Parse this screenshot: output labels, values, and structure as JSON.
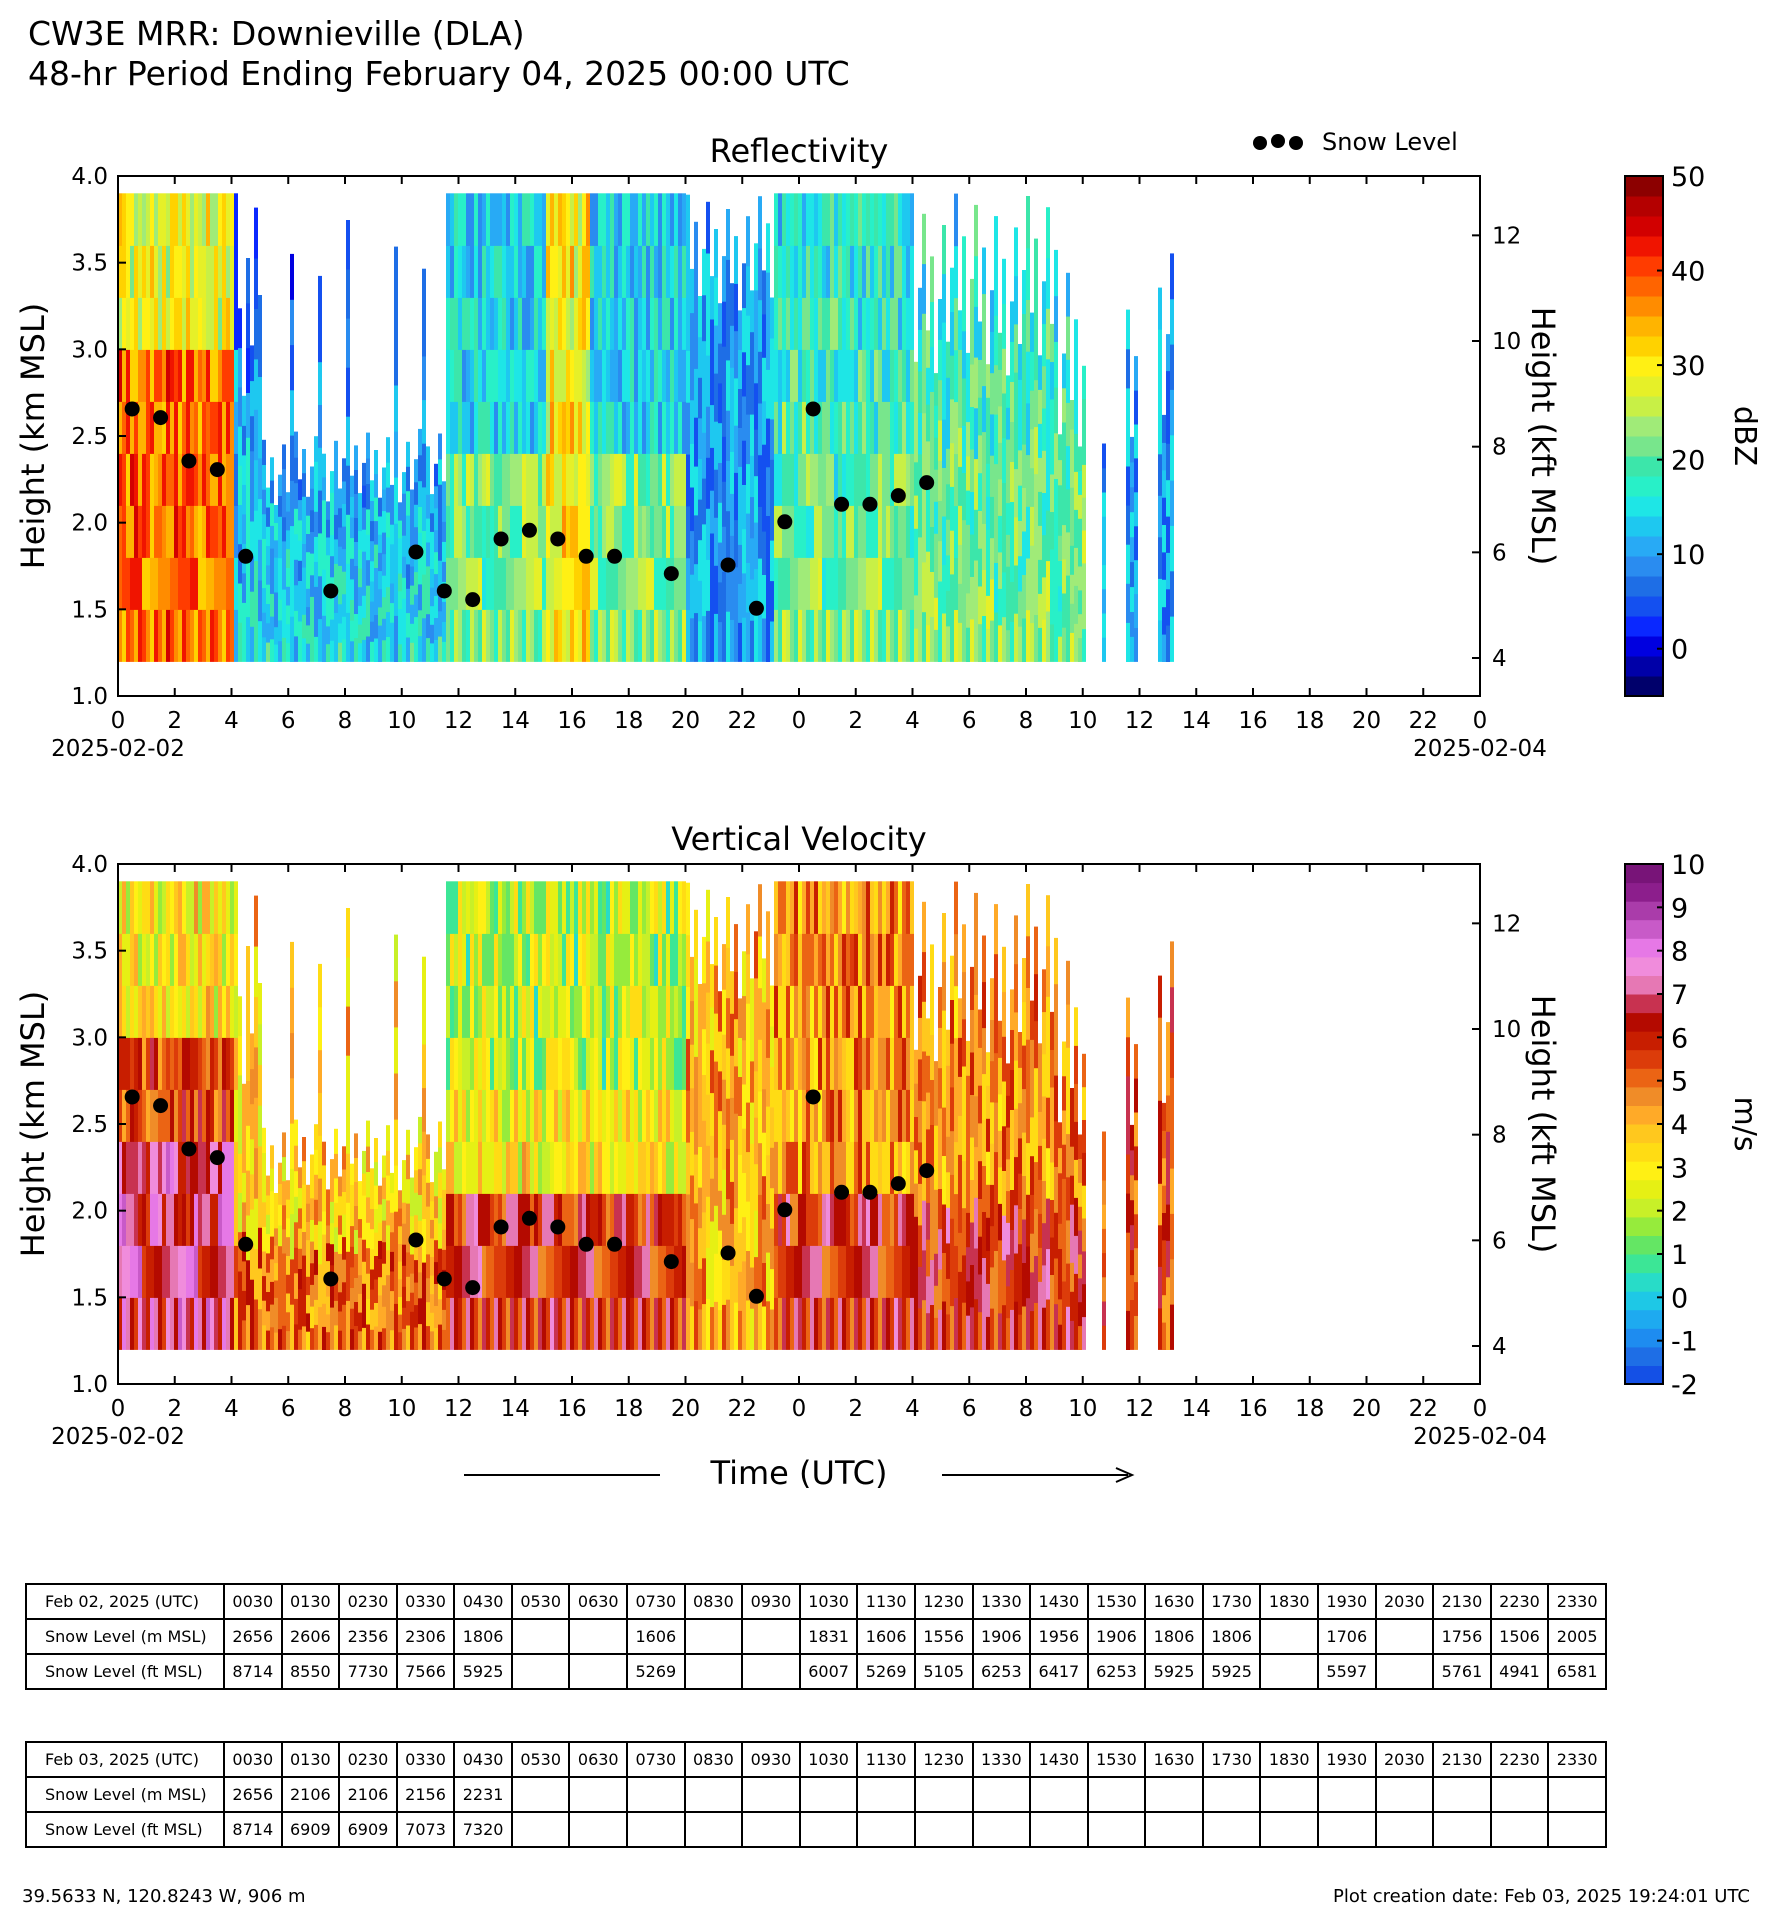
{
  "header": {
    "title": "CW3E MRR: Downieville (DLA)",
    "subtitle": "48-hr Period Ending February 04, 2025 00:00 UTC"
  },
  "legend_label": "Snow Level",
  "time_label": "Time (UTC)",
  "chart_data": [
    {
      "type": "heatmap",
      "title": "Reflectivity",
      "ylabel": "Height (km MSL)",
      "ylabel_right": "Height (kft MSL)",
      "ylim": [
        1.0,
        4.0
      ],
      "yticks": [
        "1.0",
        "1.5",
        "2.0",
        "2.5",
        "3.0",
        "3.5",
        "4.0"
      ],
      "yticks_right": [
        "4",
        "6",
        "8",
        "10",
        "12"
      ],
      "xtick_labels": [
        "0",
        "2",
        "4",
        "6",
        "8",
        "10",
        "12",
        "14",
        "16",
        "18",
        "20",
        "22",
        "0",
        "2",
        "4",
        "6",
        "8",
        "10",
        "12",
        "14",
        "16",
        "18",
        "20",
        "22",
        "0"
      ],
      "date_start": "2025-02-02",
      "date_end": "2025-02-04",
      "colorbar": {
        "label": "dBZ",
        "ticks": [
          "0",
          "10",
          "20",
          "30",
          "40",
          "50"
        ],
        "range": [
          -5,
          50
        ],
        "colors": [
          "#00006b",
          "#0000a8",
          "#0000e0",
          "#0a28ff",
          "#1450f0",
          "#1e6ee6",
          "#2a8cf0",
          "#28aaf5",
          "#1ec8f0",
          "#1ee6e6",
          "#28f0c8",
          "#3ce6aa",
          "#78e68c",
          "#a0eb78",
          "#c8f046",
          "#e6f028",
          "#fff014",
          "#ffd200",
          "#ffb400",
          "#ff8c00",
          "#ff6400",
          "#ff3c00",
          "#f01400",
          "#d20000",
          "#b40000",
          "#8c0000"
        ]
      },
      "snow_level_points": [
        {
          "x": 0.5,
          "y": 2.656
        },
        {
          "x": 1.5,
          "y": 2.606
        },
        {
          "x": 2.5,
          "y": 2.356
        },
        {
          "x": 3.5,
          "y": 2.306
        },
        {
          "x": 4.5,
          "y": 1.806
        },
        {
          "x": 7.5,
          "y": 1.606
        },
        {
          "x": 10.5,
          "y": 1.831
        },
        {
          "x": 11.5,
          "y": 1.606
        },
        {
          "x": 12.5,
          "y": 1.556
        },
        {
          "x": 13.5,
          "y": 1.906
        },
        {
          "x": 14.5,
          "y": 1.956
        },
        {
          "x": 15.5,
          "y": 1.906
        },
        {
          "x": 16.5,
          "y": 1.806
        },
        {
          "x": 17.5,
          "y": 1.806
        },
        {
          "x": 19.5,
          "y": 1.706
        },
        {
          "x": 21.5,
          "y": 1.756
        },
        {
          "x": 22.5,
          "y": 1.506
        },
        {
          "x": 23.5,
          "y": 2.005
        },
        {
          "x": 24.5,
          "y": 2.656
        },
        {
          "x": 25.5,
          "y": 2.106
        },
        {
          "x": 26.5,
          "y": 2.106
        },
        {
          "x": 27.5,
          "y": 2.156
        },
        {
          "x": 28.5,
          "y": 2.231
        }
      ]
    },
    {
      "type": "heatmap",
      "title": "Vertical Velocity",
      "ylabel": "Height (km MSL)",
      "ylabel_right": "Height (kft MSL)",
      "ylim": [
        1.0,
        4.0
      ],
      "yticks": [
        "1.0",
        "1.5",
        "2.0",
        "2.5",
        "3.0",
        "3.5",
        "4.0"
      ],
      "yticks_right": [
        "4",
        "6",
        "8",
        "10",
        "12"
      ],
      "xtick_labels": [
        "0",
        "2",
        "4",
        "6",
        "8",
        "10",
        "12",
        "14",
        "16",
        "18",
        "20",
        "22",
        "0",
        "2",
        "4",
        "6",
        "8",
        "10",
        "12",
        "14",
        "16",
        "18",
        "20",
        "22",
        "0"
      ],
      "date_start": "2025-02-02",
      "date_end": "2025-02-04",
      "colorbar": {
        "label": "m/s",
        "ticks": [
          "-2",
          "-1",
          "0",
          "1",
          "2",
          "3",
          "4",
          "5",
          "6",
          "7",
          "8",
          "9",
          "10"
        ],
        "range": [
          -2,
          10
        ],
        "colors": [
          "#1450e6",
          "#1e6ee6",
          "#1e8cf0",
          "#1eaaf0",
          "#1ec8e6",
          "#28dcc8",
          "#3ce696",
          "#64e664",
          "#96eb3c",
          "#c8f028",
          "#e6f014",
          "#fff014",
          "#ffdc14",
          "#ffc81e",
          "#ffaa28",
          "#f08c28",
          "#eb6414",
          "#dc3c0a",
          "#c81e00",
          "#b40a00",
          "#c83250",
          "#e678b4",
          "#f08cdc",
          "#e678e6",
          "#c85ac8",
          "#aa3caa",
          "#8c1e8c",
          "#781478"
        ]
      },
      "snow_level_points": [
        {
          "x": 0.5,
          "y": 2.656
        },
        {
          "x": 1.5,
          "y": 2.606
        },
        {
          "x": 2.5,
          "y": 2.356
        },
        {
          "x": 3.5,
          "y": 2.306
        },
        {
          "x": 4.5,
          "y": 1.806
        },
        {
          "x": 7.5,
          "y": 1.606
        },
        {
          "x": 10.5,
          "y": 1.831
        },
        {
          "x": 11.5,
          "y": 1.606
        },
        {
          "x": 12.5,
          "y": 1.556
        },
        {
          "x": 13.5,
          "y": 1.906
        },
        {
          "x": 14.5,
          "y": 1.956
        },
        {
          "x": 15.5,
          "y": 1.906
        },
        {
          "x": 16.5,
          "y": 1.806
        },
        {
          "x": 17.5,
          "y": 1.806
        },
        {
          "x": 19.5,
          "y": 1.706
        },
        {
          "x": 21.5,
          "y": 1.756
        },
        {
          "x": 22.5,
          "y": 1.506
        },
        {
          "x": 23.5,
          "y": 2.005
        },
        {
          "x": 24.5,
          "y": 2.656
        },
        {
          "x": 25.5,
          "y": 2.106
        },
        {
          "x": 26.5,
          "y": 2.106
        },
        {
          "x": 27.5,
          "y": 2.156
        },
        {
          "x": 28.5,
          "y": 2.231
        }
      ]
    }
  ],
  "tables": [
    {
      "header": "Feb 02, 2025 (UTC)",
      "times": [
        "0030",
        "0130",
        "0230",
        "0330",
        "0430",
        "0530",
        "0630",
        "0730",
        "0830",
        "0930",
        "1030",
        "1130",
        "1230",
        "1330",
        "1430",
        "1530",
        "1630",
        "1730",
        "1830",
        "1930",
        "2030",
        "2130",
        "2230",
        "2330"
      ],
      "rows": [
        {
          "label": "Snow Level (m MSL)",
          "values": [
            "2656",
            "2606",
            "2356",
            "2306",
            "1806",
            "",
            "",
            "1606",
            "",
            "",
            "1831",
            "1606",
            "1556",
            "1906",
            "1956",
            "1906",
            "1806",
            "1806",
            "",
            "1706",
            "",
            "1756",
            "1506",
            "2005"
          ]
        },
        {
          "label": "Snow Level (ft MSL)",
          "values": [
            "8714",
            "8550",
            "7730",
            "7566",
            "5925",
            "",
            "",
            "5269",
            "",
            "",
            "6007",
            "5269",
            "5105",
            "6253",
            "6417",
            "6253",
            "5925",
            "5925",
            "",
            "5597",
            "",
            "5761",
            "4941",
            "6581"
          ]
        }
      ]
    },
    {
      "header": "Feb 03, 2025 (UTC)",
      "times": [
        "0030",
        "0130",
        "0230",
        "0330",
        "0430",
        "0530",
        "0630",
        "0730",
        "0830",
        "0930",
        "1030",
        "1130",
        "1230",
        "1330",
        "1430",
        "1530",
        "1630",
        "1730",
        "1830",
        "1930",
        "2030",
        "2130",
        "2230",
        "2330"
      ],
      "rows": [
        {
          "label": "Snow Level (m MSL)",
          "values": [
            "2656",
            "2106",
            "2106",
            "2156",
            "2231",
            "",
            "",
            "",
            "",
            "",
            "",
            "",
            "",
            "",
            "",
            "",
            "",
            "",
            "",
            "",
            "",
            "",
            "",
            ""
          ]
        },
        {
          "label": "Snow Level (ft MSL)",
          "values": [
            "8714",
            "6909",
            "6909",
            "7073",
            "7320",
            "",
            "",
            "",
            "",
            "",
            "",
            "",
            "",
            "",
            "",
            "",
            "",
            "",
            "",
            "",
            "",
            "",
            "",
            ""
          ]
        }
      ]
    }
  ],
  "footer": {
    "location": "39.5633 N, 120.8243 W, 906 m",
    "creation": "Plot creation date: Feb 03, 2025 19:24:01 UTC"
  }
}
